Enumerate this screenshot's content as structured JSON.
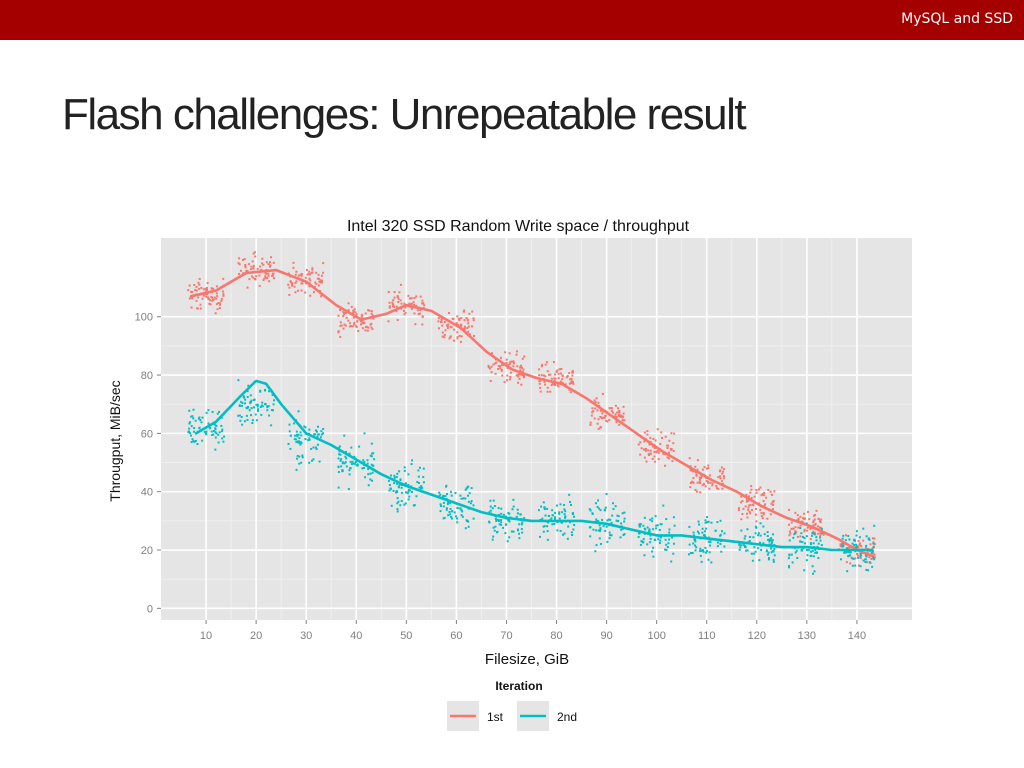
{
  "header": {
    "label": "MySQL and SSD",
    "bar_color": "#a50000"
  },
  "slide": {
    "title": "Flash challenges: Unrepeatable result"
  },
  "chart_data": {
    "type": "scatter",
    "title": "Intel 320 SSD Random Write space / throughput",
    "xlabel": "Filesize, GiB",
    "ylabel": "Througput, MiB/sec",
    "x_ticks": [
      10,
      20,
      30,
      40,
      50,
      60,
      70,
      80,
      90,
      100,
      110,
      120,
      130,
      140
    ],
    "y_ticks": [
      0,
      20,
      40,
      60,
      80,
      100
    ],
    "xlim": [
      1,
      151
    ],
    "ylim": [
      -4,
      127
    ],
    "grid": true,
    "smooth_lines": true,
    "legend": {
      "title": "Iteration",
      "position": "bottom"
    },
    "series": [
      {
        "name": "1st",
        "color": "#f8766d",
        "cluster_centers": [
          [
            10,
            107
          ],
          [
            20,
            116
          ],
          [
            30,
            113
          ],
          [
            40,
            99
          ],
          [
            50,
            104
          ],
          [
            60,
            97
          ],
          [
            70,
            82
          ],
          [
            80,
            78
          ],
          [
            90,
            67
          ],
          [
            100,
            55
          ],
          [
            110,
            45
          ],
          [
            120,
            36
          ],
          [
            130,
            29
          ],
          [
            140,
            20
          ]
        ],
        "trend": [
          [
            7,
            107
          ],
          [
            12,
            109
          ],
          [
            18,
            115
          ],
          [
            24,
            116
          ],
          [
            30,
            112
          ],
          [
            36,
            104
          ],
          [
            41,
            99
          ],
          [
            46,
            101
          ],
          [
            50,
            104
          ],
          [
            55,
            102
          ],
          [
            61,
            96
          ],
          [
            66,
            88
          ],
          [
            71,
            82
          ],
          [
            76,
            79
          ],
          [
            81,
            77
          ],
          [
            86,
            72
          ],
          [
            91,
            66
          ],
          [
            96,
            60
          ],
          [
            101,
            54
          ],
          [
            106,
            49
          ],
          [
            111,
            44
          ],
          [
            116,
            40
          ],
          [
            121,
            35
          ],
          [
            126,
            31
          ],
          [
            131,
            28
          ],
          [
            136,
            24
          ],
          [
            140,
            20
          ],
          [
            143,
            18
          ]
        ]
      },
      {
        "name": "2nd",
        "color": "#00bfc4",
        "cluster_centers": [
          [
            10,
            62
          ],
          [
            20,
            70
          ],
          [
            30,
            57
          ],
          [
            40,
            50
          ],
          [
            50,
            42
          ],
          [
            60,
            36
          ],
          [
            70,
            30
          ],
          [
            80,
            30
          ],
          [
            90,
            29
          ],
          [
            100,
            25
          ],
          [
            110,
            24
          ],
          [
            120,
            22
          ],
          [
            130,
            21
          ],
          [
            140,
            20
          ]
        ],
        "trend": [
          [
            8,
            60
          ],
          [
            12,
            64
          ],
          [
            17,
            73
          ],
          [
            20,
            78
          ],
          [
            22,
            77
          ],
          [
            25,
            70
          ],
          [
            30,
            60
          ],
          [
            35,
            56
          ],
          [
            40,
            51
          ],
          [
            45,
            46
          ],
          [
            50,
            42
          ],
          [
            55,
            39
          ],
          [
            60,
            36
          ],
          [
            65,
            33
          ],
          [
            70,
            31
          ],
          [
            75,
            30
          ],
          [
            80,
            30
          ],
          [
            85,
            30
          ],
          [
            90,
            29
          ],
          [
            95,
            27
          ],
          [
            100,
            25
          ],
          [
            105,
            25
          ],
          [
            110,
            24
          ],
          [
            115,
            23
          ],
          [
            120,
            22
          ],
          [
            125,
            21
          ],
          [
            130,
            21
          ],
          [
            135,
            20
          ],
          [
            140,
            20
          ],
          [
            143,
            20
          ]
        ]
      }
    ]
  }
}
